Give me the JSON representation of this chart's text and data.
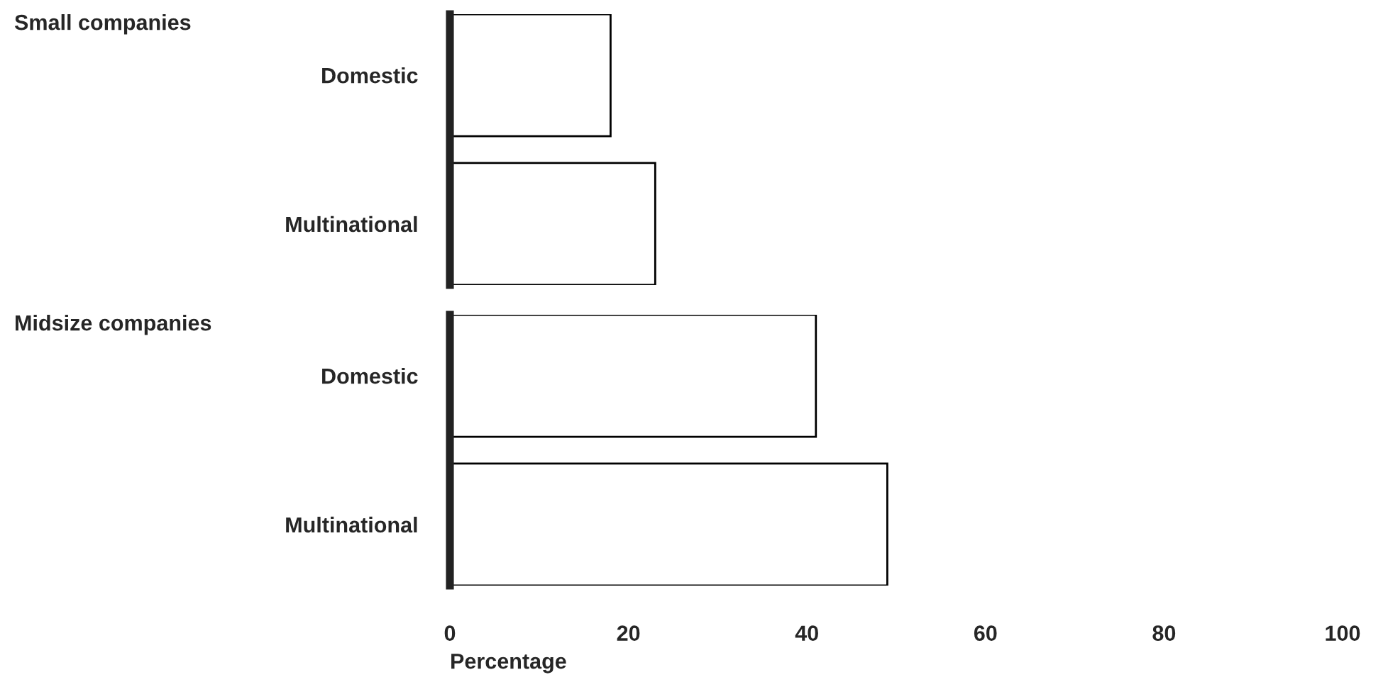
{
  "chart_data": [
    {
      "type": "bar",
      "orientation": "horizontal",
      "title": "Small companies",
      "categories": [
        "Domestic",
        "Multinational"
      ],
      "values": [
        18,
        23
      ],
      "color": "#ffffff",
      "xlim": [
        0,
        100
      ],
      "xticks": [
        0,
        20,
        40,
        60,
        80,
        100
      ],
      "tick_labels": "y",
      "grid": false,
      "legend": false
    },
    {
      "type": "bar",
      "orientation": "horizontal",
      "title": "Midsize companies",
      "categories": [
        "Domestic",
        "Multinational"
      ],
      "values": [
        41,
        49
      ],
      "color": "#ffffff",
      "xlim": [
        0,
        100
      ],
      "xticks": [
        0,
        20,
        40,
        60,
        80,
        100
      ],
      "xlabel": "Percentage",
      "grid": false,
      "legend": false
    }
  ]
}
